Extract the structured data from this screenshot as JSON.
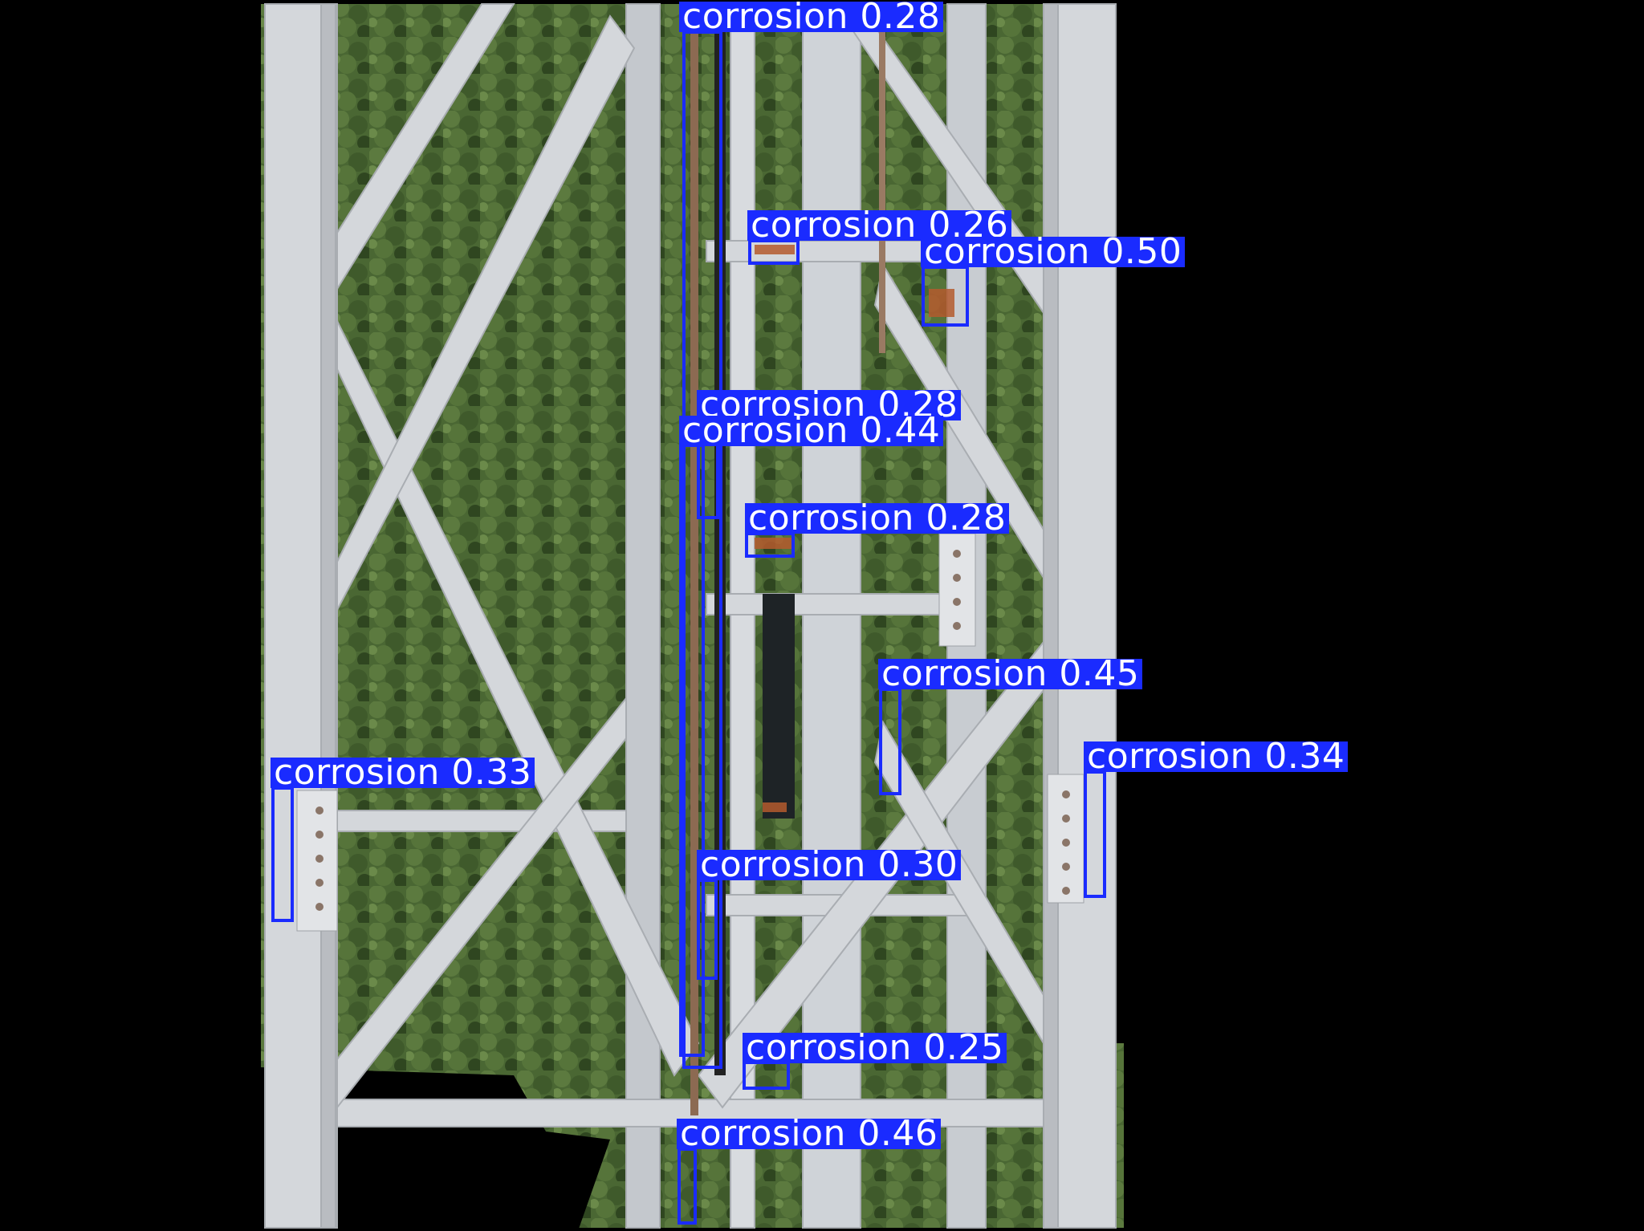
{
  "colors": {
    "box": "#1a2bff",
    "label_bg": "#1a2bff",
    "label_text": "#ffffff",
    "background": "#000000",
    "foliage": "#4d6a34",
    "steel": "#d7dade"
  },
  "detections": [
    {
      "label": "corrosion 0.28",
      "cls": "corrosion",
      "score": 0.28
    },
    {
      "label": "corrosion 0.26",
      "cls": "corrosion",
      "score": 0.26
    },
    {
      "label": "corrosion 0.50",
      "cls": "corrosion",
      "score": 0.5
    },
    {
      "label": "corrosion 0.28",
      "cls": "corrosion",
      "score": 0.28
    },
    {
      "label": "corrosion 0.44",
      "cls": "corrosion",
      "score": 0.44
    },
    {
      "label": "corrosion 0.28",
      "cls": "corrosion",
      "score": 0.28
    },
    {
      "label": "corrosion 0.45",
      "cls": "corrosion",
      "score": 0.45
    },
    {
      "label": "corrosion 0.33",
      "cls": "corrosion",
      "score": 0.33
    },
    {
      "label": "corrosion 0.34",
      "cls": "corrosion",
      "score": 0.34
    },
    {
      "label": "corrosion 0.30",
      "cls": "corrosion",
      "score": 0.3
    },
    {
      "label": "corrosion 0.25",
      "cls": "corrosion",
      "score": 0.25
    },
    {
      "label": "corrosion 0.46",
      "cls": "corrosion",
      "score": 0.46
    }
  ]
}
